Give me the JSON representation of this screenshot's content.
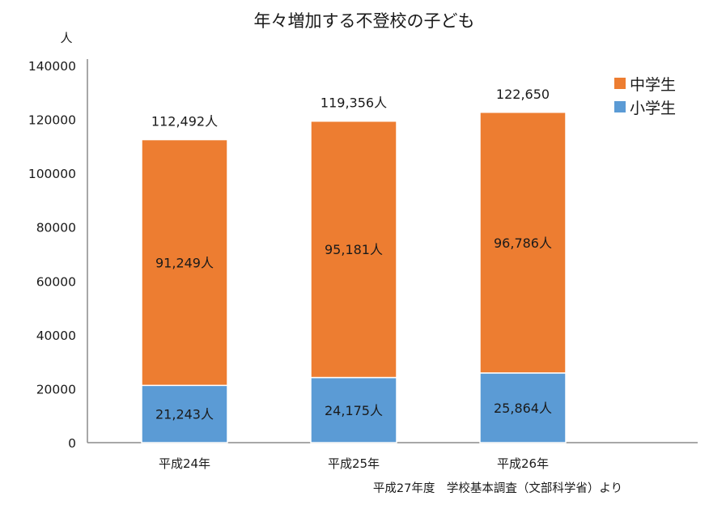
{
  "chart_data": {
    "type": "bar",
    "stacked": true,
    "title": "年々増加する不登校の子ども",
    "ylabel": "人",
    "categories": [
      "平成24年",
      "平成25年",
      "平成26年"
    ],
    "series": [
      {
        "name": "小学生",
        "values": [
          21243,
          24175,
          25864
        ],
        "labels": [
          "21,243人",
          "24,175人",
          "25,864人"
        ],
        "color": "#5b9bd5"
      },
      {
        "name": "中学生",
        "values": [
          91249,
          95181,
          96786
        ],
        "labels": [
          "91,249人",
          "95,181人",
          "96,786人"
        ],
        "color": "#ed7d31"
      }
    ],
    "totals": [
      "112,492人",
      "119,356人",
      "122,650"
    ],
    "ylim": [
      0,
      140000
    ],
    "yticks": [
      "0",
      "20000",
      "40000",
      "60000",
      "80000",
      "100000",
      "120000",
      "140000"
    ],
    "yticks_values": [
      0,
      20000,
      40000,
      60000,
      80000,
      100000,
      120000,
      140000
    ],
    "grid": false,
    "legend_position": "top-right",
    "legend_order": [
      "中学生",
      "小学生"
    ],
    "source": "平成27年度　学校基本調査（文部科学省）より"
  }
}
